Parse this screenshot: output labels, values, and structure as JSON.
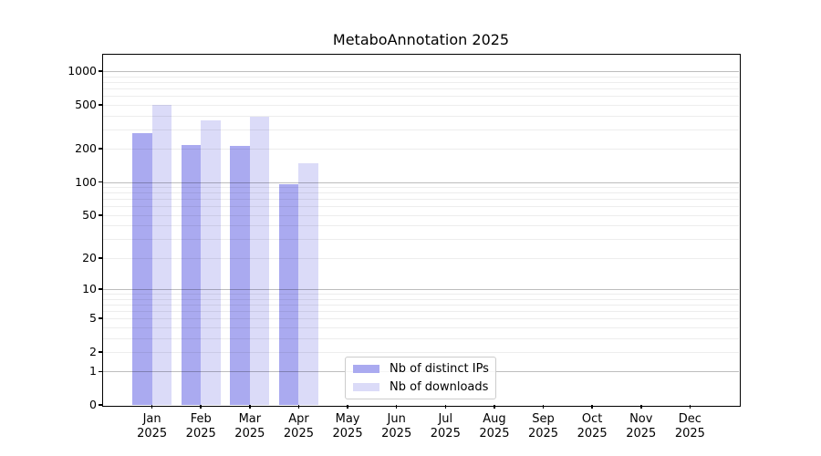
{
  "chart_data": {
    "type": "bar",
    "title": "MetaboAnnotation 2025",
    "x": {
      "categories": [
        "Jan",
        "Feb",
        "Mar",
        "Apr",
        "May",
        "Jun",
        "Jul",
        "Aug",
        "Sep",
        "Oct",
        "Nov",
        "Dec"
      ],
      "sub_label": "2025"
    },
    "series": [
      {
        "name": "Nb of distinct IPs",
        "color": "#aaaaf0",
        "values": [
          280,
          218,
          214,
          96,
          0,
          0,
          0,
          0,
          0,
          0,
          0,
          0
        ]
      },
      {
        "name": "Nb of downloads",
        "color": "#dbdbf8",
        "values": [
          500,
          360,
          390,
          148,
          0,
          0,
          0,
          0,
          0,
          0,
          0,
          0
        ]
      }
    ],
    "y_axis": {
      "scale": "log1p",
      "tick_values": [
        0,
        1,
        2,
        5,
        10,
        20,
        50,
        100,
        200,
        500,
        1000
      ],
      "tick_labels": [
        "0",
        "1",
        "2",
        "5",
        "10",
        "20",
        "50",
        "100",
        "200",
        "500",
        "1000"
      ],
      "major_gridlines": [
        1,
        10,
        100,
        1000
      ],
      "minor_multiples": [
        2,
        3,
        4,
        5,
        6,
        7,
        8,
        9
      ],
      "ylim": [
        0,
        1430
      ],
      "grid": "on"
    },
    "legend": {
      "location": "lower center",
      "entries": [
        "Nb of distinct IPs",
        "Nb of downloads"
      ]
    },
    "colors": {
      "distinct_ips": "#aaaaf0",
      "downloads": "#dbdbf8",
      "grid_major": "#bdbdbd",
      "grid_minor": "#ededed",
      "spine": "#000000",
      "background": "#ffffff"
    }
  }
}
